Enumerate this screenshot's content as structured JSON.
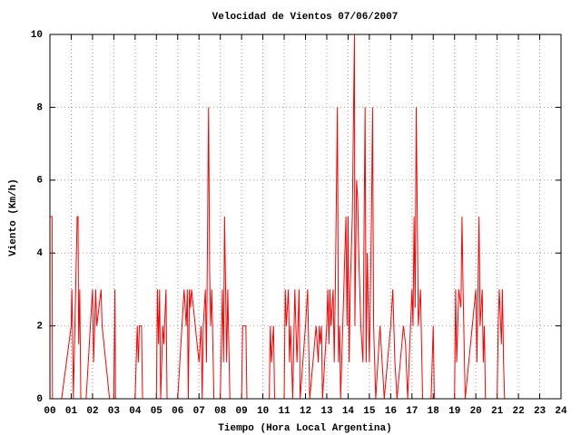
{
  "chart_data": {
    "type": "line",
    "title": "Velocidad de Vientos 07/06/2007",
    "xlabel": "Tiempo (Hora Local Argentina)",
    "ylabel": "Viento (Km/h)",
    "x": [
      0.0,
      0.1,
      0.12,
      0.55,
      1.0,
      1.03,
      1.06,
      1.1,
      1.28,
      1.32,
      1.35,
      1.4,
      1.45,
      1.7,
      2.0,
      2.05,
      2.1,
      2.15,
      2.2,
      2.4,
      2.45,
      2.8,
      3.0,
      3.05,
      3.08,
      4.0,
      4.05,
      4.1,
      4.15,
      4.2,
      4.3,
      4.35,
      5.0,
      5.05,
      5.1,
      5.15,
      5.2,
      5.3,
      5.35,
      5.45,
      5.5,
      6.0,
      6.3,
      6.4,
      6.45,
      6.5,
      6.55,
      6.6,
      6.65,
      7.0,
      7.1,
      7.15,
      7.2,
      7.3,
      7.35,
      7.45,
      7.5,
      7.55,
      7.6,
      7.7,
      8.0,
      8.1,
      8.15,
      8.2,
      8.25,
      8.3,
      8.35,
      8.4,
      8.45,
      9.0,
      9.05,
      9.1,
      9.2,
      9.25,
      10.3,
      10.35,
      10.4,
      10.5,
      10.55,
      11.0,
      11.05,
      11.1,
      11.2,
      11.25,
      11.3,
      11.4,
      11.5,
      11.6,
      11.65,
      11.7,
      11.75,
      12.0,
      12.1,
      12.2,
      12.5,
      12.6,
      12.65,
      12.7,
      12.75,
      12.8,
      13.0,
      13.05,
      13.1,
      13.15,
      13.2,
      13.3,
      13.35,
      13.4,
      13.5,
      13.55,
      13.6,
      13.65,
      13.8,
      13.9,
      13.95,
      14.0,
      14.05,
      14.1,
      14.2,
      14.3,
      14.32,
      14.4,
      14.45,
      14.5,
      14.6,
      14.7,
      14.8,
      14.85,
      14.9,
      15.0,
      15.1,
      15.15,
      15.2,
      15.3,
      15.5,
      15.6,
      15.7,
      16.0,
      16.1,
      16.2,
      16.3,
      16.6,
      16.7,
      16.8,
      17.0,
      17.05,
      17.1,
      17.15,
      17.2,
      17.25,
      17.3,
      17.4,
      17.5,
      17.9,
      18.0,
      18.05,
      19.0,
      19.05,
      19.1,
      19.2,
      19.3,
      19.35,
      19.4,
      19.5,
      20.0,
      20.05,
      20.1,
      20.15,
      20.2,
      20.3,
      20.35,
      20.4,
      20.45,
      21.0,
      21.05,
      21.1,
      21.2,
      21.25,
      21.3,
      21.35
    ],
    "series": [
      {
        "name": "Viento",
        "color": "#ff0000",
        "values": [
          5,
          5,
          0,
          0,
          2,
          3,
          2,
          0,
          5,
          5,
          1.5,
          3,
          0,
          0,
          3,
          1,
          2,
          3,
          2,
          3,
          2,
          0,
          0,
          3,
          0,
          0,
          1,
          2,
          1,
          2,
          2,
          0,
          0,
          3,
          1.5,
          3,
          0,
          2,
          1.5,
          3,
          0,
          0,
          3,
          2,
          3,
          0,
          3,
          2.5,
          3,
          1,
          2,
          0,
          2,
          3,
          1,
          8,
          3.5,
          2,
          3,
          0,
          0,
          3,
          1,
          5,
          3,
          1,
          3,
          1.5,
          0,
          0,
          2,
          2,
          2,
          0,
          0,
          2,
          1,
          2,
          0,
          0,
          3,
          2,
          3,
          1,
          2,
          0,
          3,
          1,
          2,
          3,
          0,
          2,
          3,
          0,
          2,
          1,
          2,
          1.5,
          2,
          0,
          2,
          3,
          1.5,
          3,
          2,
          3,
          1,
          3,
          8,
          1,
          2,
          0,
          3,
          5,
          2,
          5,
          1,
          3,
          5,
          10,
          2,
          6,
          5.5,
          4,
          2,
          1,
          8,
          1,
          4,
          1,
          5,
          8,
          2,
          0,
          2,
          1,
          0,
          2,
          3,
          1,
          0,
          2,
          1.5,
          0,
          3,
          2,
          5,
          2.5,
          8,
          5,
          2,
          3,
          0,
          0,
          2,
          0,
          0,
          3,
          1,
          3,
          2.5,
          5,
          3,
          0,
          3,
          1,
          3,
          5,
          2,
          3,
          1,
          2,
          0,
          0,
          2,
          3,
          1.5,
          3,
          1,
          0
        ]
      }
    ],
    "xlim": [
      0,
      24
    ],
    "xticks": [
      {
        "value": 0,
        "label": "00"
      },
      {
        "value": 1,
        "label": "01"
      },
      {
        "value": 2,
        "label": "02"
      },
      {
        "value": 3,
        "label": "03"
      },
      {
        "value": 4,
        "label": "04"
      },
      {
        "value": 5,
        "label": "05"
      },
      {
        "value": 6,
        "label": "06"
      },
      {
        "value": 7,
        "label": "07"
      },
      {
        "value": 8,
        "label": "08"
      },
      {
        "value": 9,
        "label": "09"
      },
      10,
      11,
      12,
      13,
      14,
      15,
      16,
      17,
      18,
      19,
      20,
      21,
      22,
      23,
      24
    ],
    "ylim": [
      0,
      10
    ],
    "yticks": [
      0,
      2,
      4,
      6,
      8,
      10
    ],
    "grid": true
  }
}
